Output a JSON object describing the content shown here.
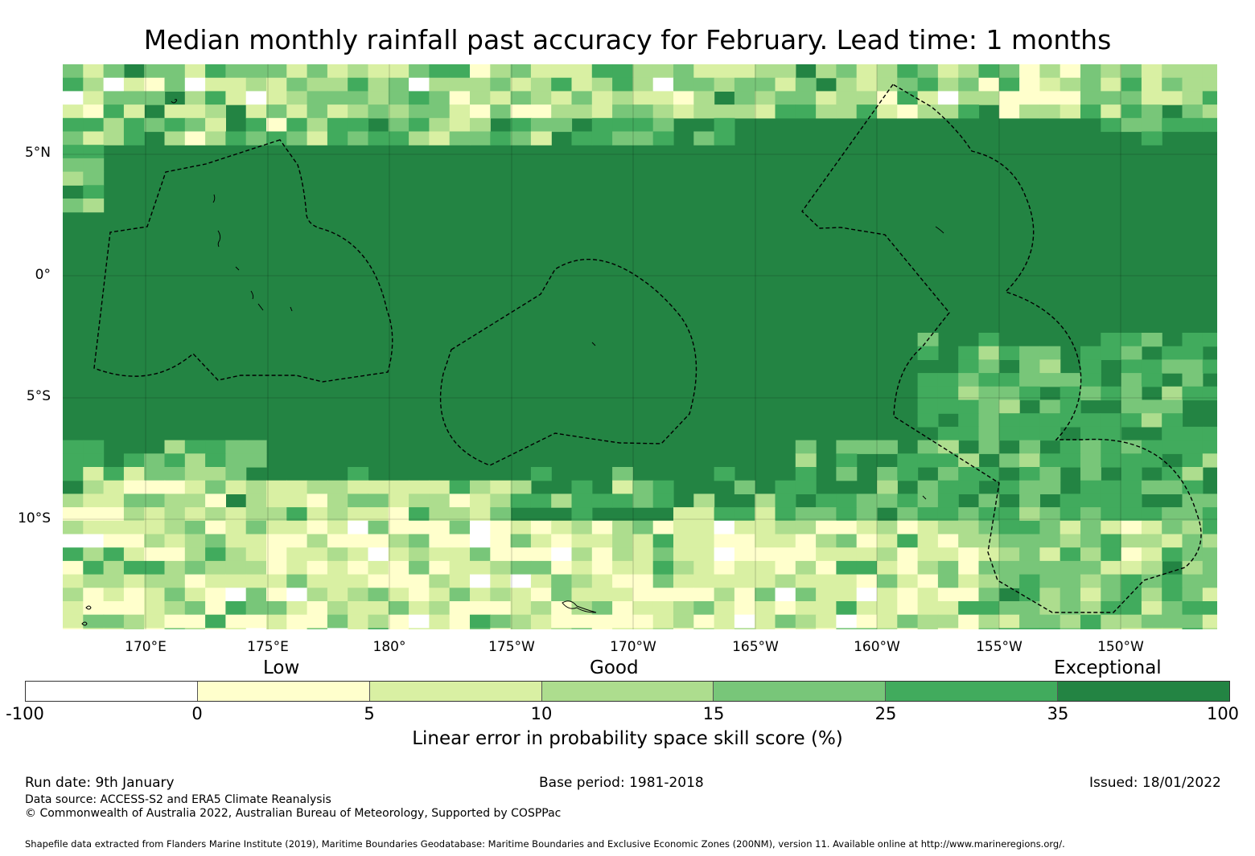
{
  "title": "Median monthly rainfall past accuracy for February. Lead time: 1 months",
  "map": {
    "lon_min": 166.6,
    "lon_max": 213.8,
    "lat_min": -14.5,
    "lat_max": 8.6,
    "lat_labels": [
      "5°N",
      "0°",
      "5°S",
      "10°S"
    ],
    "lon_labels": [
      "170°E",
      "175°E",
      "180°",
      "175°W",
      "170°W",
      "165°W",
      "160°W",
      "155°W",
      "150°W"
    ],
    "skill_category_colors": [
      "#ffffff",
      "#ffffcc",
      "#d9f0a3",
      "#addd8e",
      "#78c679",
      "#41ab5d",
      "#238443"
    ]
  },
  "categories": {
    "low": "Low",
    "good": "Good",
    "exceptional": "Exceptional"
  },
  "colorbar": {
    "colors": [
      "#ffffff",
      "#ffffcc",
      "#d9f0a3",
      "#addd8e",
      "#78c679",
      "#41ab5d",
      "#238443"
    ],
    "ticks": [
      "-100",
      "0",
      "5",
      "10",
      "15",
      "25",
      "35",
      "100"
    ],
    "label": "Linear error in probability space skill score (%)"
  },
  "footer": {
    "run_date": "Run date: 9th January",
    "base_period": "Base period: 1981-2018",
    "issued": "Issued: 18/01/2022",
    "data_source": "Data source: ACCESS-S2 and ERA5 Climate Reanalysis",
    "copyright": "© Commonwealth of Australia 2022, Australian Bureau of Meteorology, Supported by COSPPac",
    "shapefile": "Shapefile data extracted from Flanders Marine Institute (2019), Maritime Boundaries Geodatabase: Maritime Boundaries and Exclusive Economic Zones (200NM), version 11. Available online at http://www.marineregions.org/."
  }
}
